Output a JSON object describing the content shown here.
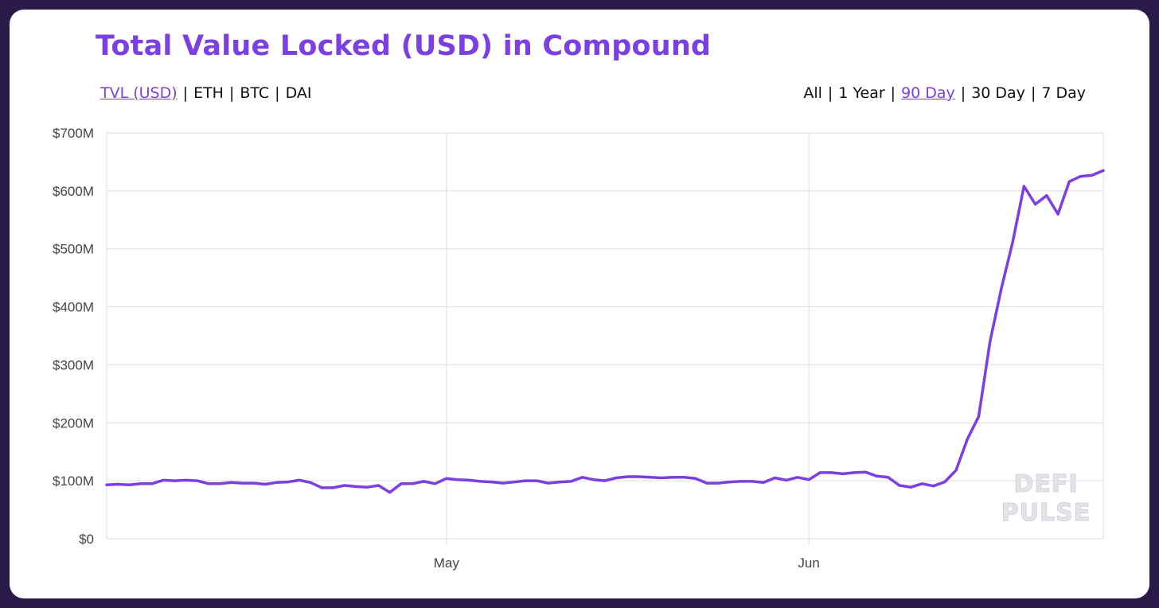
{
  "title": "Total Value Locked (USD) in Compound",
  "metric_options": [
    "TVL (USD)",
    "ETH",
    "BTC",
    "DAI"
  ],
  "metric_active": 0,
  "range_options": [
    "All",
    "1 Year",
    "90 Day",
    "30 Day",
    "7 Day"
  ],
  "range_active": 2,
  "watermark": [
    "DEFI",
    "PULSE"
  ],
  "colors": {
    "line": "#7b3fe4",
    "accent": "#7b3fe4",
    "grid": "#dddddd",
    "frame": "#2a1a4a"
  },
  "chart_data": {
    "type": "line",
    "title": "Total Value Locked (USD) in Compound",
    "ylim": [
      0,
      700
    ],
    "yticks": [
      0,
      100,
      200,
      300,
      400,
      500,
      600,
      700
    ],
    "ytick_labels": [
      "$0",
      "$100M",
      "$200M",
      "$300M",
      "$400M",
      "$500M",
      "$600M",
      "$700M"
    ],
    "xticks": [
      {
        "index": 30,
        "label": "May"
      },
      {
        "index": 62,
        "label": "Jun"
      }
    ],
    "grid": true,
    "series": [
      {
        "values": [
          93,
          94,
          93,
          95,
          95,
          101,
          100,
          101,
          100,
          95,
          95,
          97,
          96,
          96,
          94,
          97,
          98,
          101,
          97,
          88,
          88,
          92,
          90,
          89,
          92,
          80,
          95,
          95,
          99,
          95,
          104,
          102,
          101,
          99,
          98,
          96,
          98,
          100,
          100,
          96,
          98,
          99,
          106,
          102,
          100,
          105,
          107,
          107,
          106,
          105,
          106,
          106,
          104,
          96,
          96,
          98,
          99,
          99,
          97,
          105,
          101,
          106,
          102,
          114,
          114,
          112,
          114,
          115,
          108,
          106,
          92,
          89,
          95,
          91,
          98,
          118,
          172,
          211,
          340,
          432,
          512,
          608,
          577,
          592,
          560,
          616,
          625,
          627,
          635
        ]
      }
    ]
  }
}
